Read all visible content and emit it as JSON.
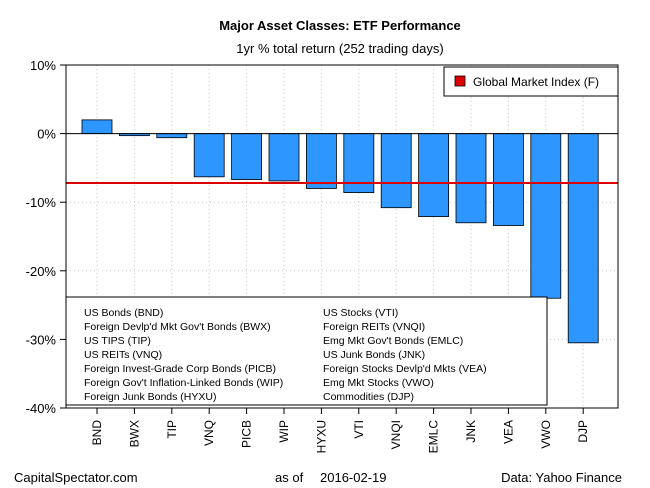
{
  "chart_data": {
    "type": "bar",
    "title": "Major Asset Classes: ETF Performance",
    "subtitle": "1yr % total return (252 trading days)",
    "categories": [
      "BND",
      "BWX",
      "TIP",
      "VNQ",
      "PICB",
      "WIP",
      "HYXU",
      "VTI",
      "VNQI",
      "EMLC",
      "JNK",
      "VEA",
      "VWO",
      "DJP"
    ],
    "values": [
      2.0,
      -0.3,
      -0.6,
      -6.3,
      -6.7,
      -6.9,
      -8.0,
      -8.6,
      -10.8,
      -12.1,
      -13.0,
      -13.4,
      -24.0,
      -30.5
    ],
    "ylim": [
      -40,
      10
    ],
    "yticks": [
      10,
      0,
      -10,
      -20,
      -30,
      -40
    ],
    "ytick_labels": [
      "10%",
      "0%",
      "-10%",
      "-20%",
      "-30%",
      "-40%"
    ],
    "reference_line": {
      "label": "Global Market Index (F)",
      "value": -7.2,
      "color": "#dd0000"
    },
    "bar_color": "#2e96ff",
    "grid": true,
    "legend_placement": "top-right"
  },
  "descriptions": {
    "left": [
      "US Bonds (BND)",
      "Foreign Devlp'd Mkt Gov't Bonds (BWX)",
      "US TIPS (TIP)",
      "US REITs (VNQ)",
      "Foreign Invest-Grade Corp Bonds (PICB)",
      "Foreign Gov't Inflation-Linked Bonds (WIP)",
      "Foreign Junk Bonds (HYXU)"
    ],
    "right": [
      "US Stocks (VTI)",
      "Foreign REITs (VNQI)",
      "Emg Mkt Gov't Bonds (EMLC)",
      "US Junk Bonds (JNK)",
      "Foreign Stocks Devlp'd Mkts (VEA)",
      "Emg Mkt Stocks (VWO)",
      "Commodities (DJP)"
    ]
  },
  "footer": {
    "source": "CapitalSpectator.com",
    "as_of_label": "as of",
    "date": "2016-02-19",
    "data_credit": "Data: Yahoo Finance"
  }
}
